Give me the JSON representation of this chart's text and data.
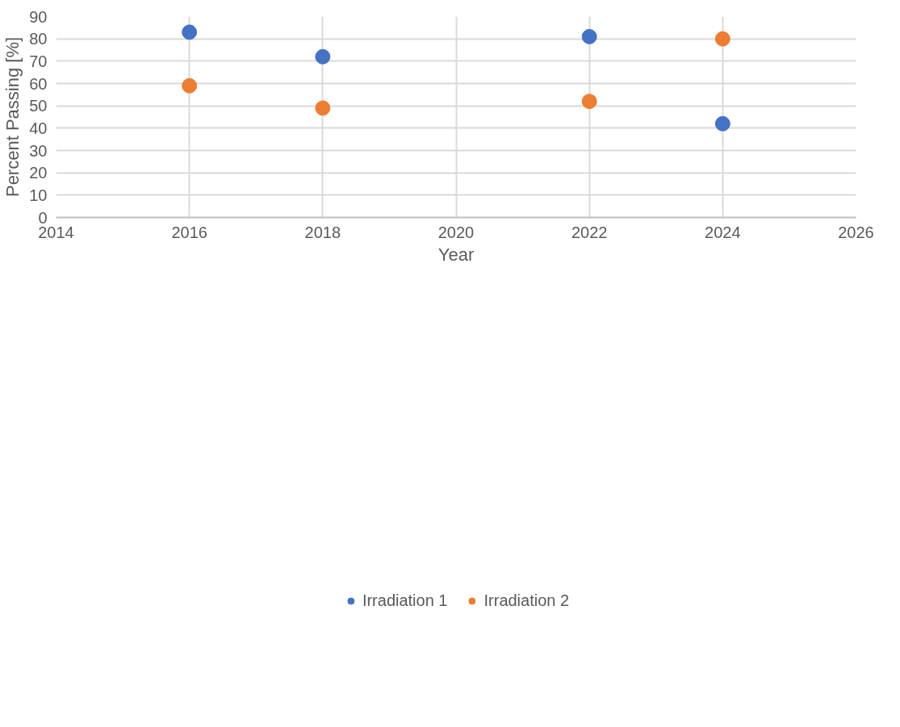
{
  "chart_data": {
    "type": "scatter",
    "xlabel": "Year",
    "ylabel": "Percent Passing [%]",
    "x": [
      2016,
      2018,
      2022,
      2024
    ],
    "series": [
      {
        "name": "Irradiation 1",
        "color": "#4472c4",
        "values": [
          83,
          72,
          81,
          42
        ]
      },
      {
        "name": "Irradiation 2",
        "color": "#ed7d31",
        "values": [
          59,
          49,
          52,
          80
        ]
      }
    ],
    "xlim": [
      2014,
      2026
    ],
    "xticks": [
      2014,
      2016,
      2018,
      2020,
      2022,
      2024,
      2026
    ],
    "ylim": [
      0,
      90
    ],
    "yticks": [
      0,
      10,
      20,
      30,
      40,
      50,
      60,
      70,
      80,
      90
    ],
    "grid": true,
    "legend": "bottom",
    "marker": "circle"
  }
}
